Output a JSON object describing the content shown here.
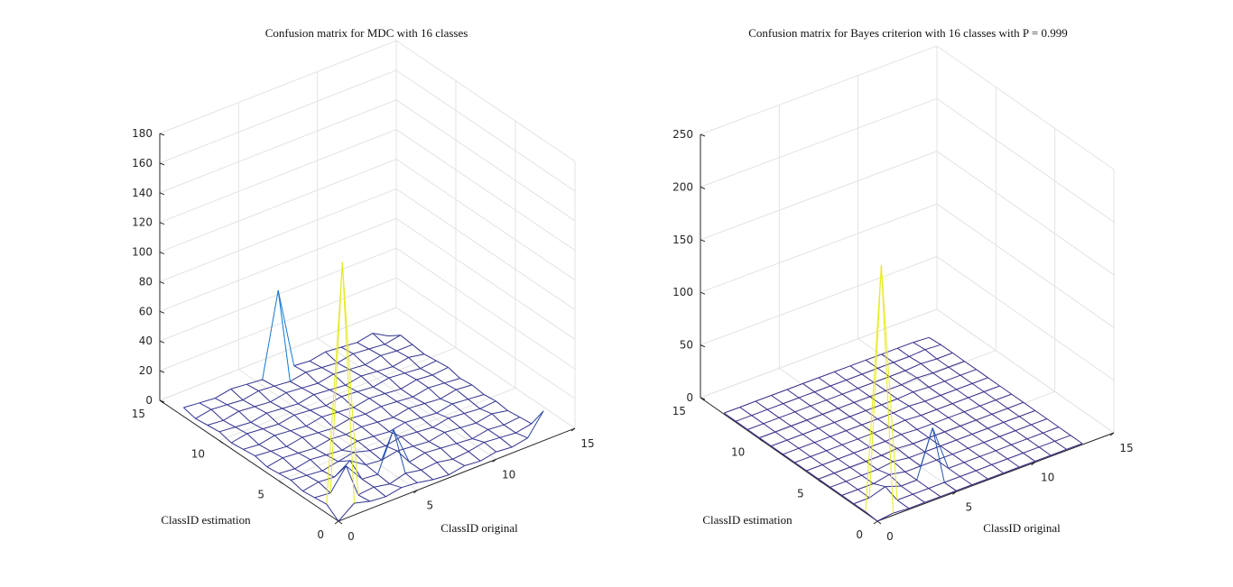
{
  "figure": {
    "background": "#ffffff",
    "colors": {
      "grid": "#e3e3e3",
      "axis": "#262626",
      "mesh_low": "#3b2fa0",
      "mesh_mid": "#1aa0e0",
      "mesh_high": "#f5f018"
    }
  },
  "chart_data": [
    {
      "type": "surface3d",
      "title": "Confusion matrix for MDC with 16 classes",
      "xlabel": "ClassID original",
      "ylabel": "ClassID estimation",
      "zlabel": "",
      "xlim": [
        0,
        15
      ],
      "ylim": [
        0,
        15
      ],
      "zlim": [
        0,
        180
      ],
      "x_ticks": [
        "0",
        "5",
        "10",
        "15"
      ],
      "y_ticks": [
        "0",
        "5",
        "10",
        "15"
      ],
      "z_ticks": [
        "0",
        "20",
        "40",
        "60",
        "80",
        "100",
        "120",
        "140",
        "160",
        "180"
      ],
      "grid": true,
      "x": [
        0,
        1,
        2,
        3,
        4,
        5,
        6,
        7,
        8,
        9,
        10,
        11,
        12,
        13
      ],
      "y": [
        0,
        1,
        2,
        3,
        4,
        5,
        6,
        7,
        8,
        9,
        10,
        11,
        12,
        13
      ],
      "z_note": "rows indexed by ClassID estimation (y), columns by ClassID original (x)",
      "z": [
        [
          0,
          8,
          5,
          4,
          6,
          5,
          3,
          2,
          4,
          3,
          5,
          4,
          6,
          20
        ],
        [
          6,
          165,
          4,
          5,
          3,
          6,
          4,
          5,
          3,
          4,
          6,
          5,
          4,
          6
        ],
        [
          5,
          4,
          18,
          5,
          4,
          30,
          4,
          6,
          5,
          4,
          3,
          5,
          4,
          5
        ],
        [
          4,
          6,
          5,
          12,
          5,
          4,
          6,
          5,
          4,
          6,
          5,
          4,
          6,
          4
        ],
        [
          6,
          5,
          4,
          6,
          8,
          5,
          4,
          6,
          5,
          4,
          6,
          5,
          4,
          5
        ],
        [
          5,
          4,
          6,
          5,
          4,
          6,
          5,
          4,
          6,
          5,
          4,
          6,
          5,
          4
        ],
        [
          4,
          6,
          5,
          4,
          6,
          5,
          6,
          5,
          4,
          6,
          5,
          4,
          6,
          5
        ],
        [
          6,
          5,
          4,
          6,
          5,
          4,
          6,
          5,
          6,
          5,
          4,
          6,
          5,
          4
        ],
        [
          5,
          4,
          6,
          5,
          4,
          6,
          5,
          4,
          6,
          5,
          4,
          6,
          5,
          6
        ],
        [
          4,
          6,
          5,
          4,
          6,
          5,
          4,
          6,
          5,
          4,
          6,
          5,
          4,
          5
        ],
        [
          6,
          5,
          4,
          6,
          5,
          4,
          6,
          5,
          4,
          6,
          5,
          4,
          6,
          4
        ],
        [
          5,
          4,
          6,
          5,
          4,
          6,
          5,
          4,
          6,
          5,
          4,
          6,
          5,
          5
        ],
        [
          4,
          6,
          5,
          4,
          6,
          5,
          4,
          6,
          5,
          4,
          6,
          5,
          4,
          6
        ],
        [
          6,
          5,
          4,
          6,
          5,
          4,
          60,
          5,
          4,
          6,
          5,
          4,
          6,
          0
        ]
      ]
    },
    {
      "type": "surface3d",
      "title": "Confusion matrix for Bayes criterion with 16 classes with P = 0.999",
      "xlabel": "ClassID original",
      "ylabel": "ClassID estimation",
      "zlabel": "",
      "xlim": [
        0,
        15
      ],
      "ylim": [
        0,
        15
      ],
      "zlim": [
        0,
        250
      ],
      "x_ticks": [
        "0",
        "5",
        "10",
        "15"
      ],
      "y_ticks": [
        "0",
        "5",
        "10",
        "15"
      ],
      "z_ticks": [
        "0",
        "50",
        "100",
        "150",
        "200",
        "250"
      ],
      "grid": true,
      "x": [
        0,
        1,
        2,
        3,
        4,
        5,
        6,
        7,
        8,
        9,
        10,
        11,
        12,
        13
      ],
      "y": [
        0,
        1,
        2,
        3,
        4,
        5,
        6,
        7,
        8,
        9,
        10,
        11,
        12,
        13
      ],
      "z_note": "rows indexed by ClassID estimation (y), columns by ClassID original (x)",
      "z": [
        [
          0,
          2,
          1,
          1,
          1,
          1,
          1,
          1,
          1,
          1,
          1,
          1,
          1,
          1
        ],
        [
          1,
          230,
          1,
          1,
          1,
          1,
          1,
          1,
          1,
          1,
          1,
          1,
          1,
          1
        ],
        [
          1,
          1,
          6,
          1,
          1,
          45,
          1,
          1,
          1,
          1,
          1,
          1,
          1,
          1
        ],
        [
          1,
          1,
          1,
          4,
          1,
          1,
          1,
          1,
          1,
          1,
          1,
          1,
          1,
          1
        ],
        [
          1,
          1,
          1,
          1,
          3,
          1,
          1,
          1,
          1,
          1,
          1,
          1,
          1,
          1
        ],
        [
          1,
          1,
          1,
          1,
          1,
          2,
          1,
          1,
          1,
          1,
          1,
          1,
          1,
          1
        ],
        [
          1,
          1,
          1,
          1,
          1,
          1,
          2,
          1,
          1,
          1,
          1,
          1,
          1,
          1
        ],
        [
          1,
          1,
          1,
          1,
          1,
          1,
          1,
          2,
          1,
          1,
          1,
          1,
          1,
          1
        ],
        [
          1,
          1,
          1,
          1,
          1,
          1,
          1,
          1,
          2,
          1,
          1,
          1,
          1,
          1
        ],
        [
          1,
          1,
          1,
          1,
          1,
          1,
          1,
          1,
          1,
          2,
          1,
          1,
          1,
          1
        ],
        [
          1,
          1,
          1,
          1,
          1,
          1,
          1,
          1,
          1,
          1,
          2,
          1,
          1,
          1
        ],
        [
          1,
          1,
          1,
          1,
          1,
          1,
          1,
          1,
          1,
          1,
          1,
          2,
          1,
          1
        ],
        [
          1,
          1,
          1,
          1,
          1,
          1,
          1,
          1,
          1,
          1,
          1,
          1,
          2,
          1
        ],
        [
          1,
          1,
          1,
          1,
          1,
          1,
          1,
          1,
          1,
          1,
          1,
          1,
          1,
          0
        ]
      ]
    }
  ]
}
